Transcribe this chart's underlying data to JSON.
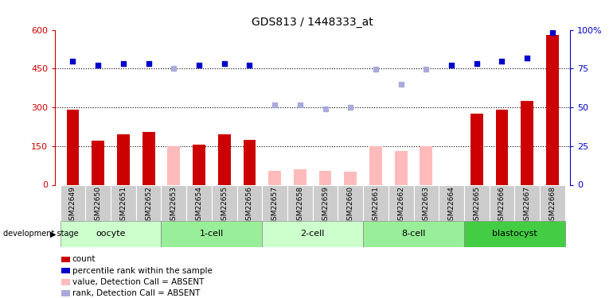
{
  "title": "GDS813 / 1448333_at",
  "samples": [
    "GSM22649",
    "GSM22650",
    "GSM22651",
    "GSM22652",
    "GSM22653",
    "GSM22654",
    "GSM22655",
    "GSM22656",
    "GSM22657",
    "GSM22658",
    "GSM22659",
    "GSM22660",
    "GSM22661",
    "GSM22662",
    "GSM22663",
    "GSM22664",
    "GSM22665",
    "GSM22666",
    "GSM22667",
    "GSM22668"
  ],
  "count_values": [
    290,
    170,
    195,
    205,
    null,
    155,
    195,
    175,
    null,
    null,
    null,
    null,
    null,
    null,
    null,
    null,
    275,
    290,
    325,
    580
  ],
  "absent_value_bars": [
    null,
    null,
    null,
    null,
    148,
    null,
    null,
    null,
    55,
    60,
    55,
    50,
    148,
    130,
    148,
    null,
    null,
    null,
    null,
    null
  ],
  "rank_present": [
    480,
    462,
    468,
    468,
    null,
    462,
    468,
    462,
    null,
    null,
    null,
    null,
    null,
    null,
    null,
    462,
    468,
    480,
    490,
    590
  ],
  "rank_absent": [
    null,
    null,
    null,
    null,
    450,
    null,
    null,
    null,
    310,
    310,
    295,
    300,
    448,
    390,
    448,
    null,
    null,
    null,
    null,
    null
  ],
  "stages": [
    {
      "name": "oocyte",
      "start": 0,
      "end": 4,
      "color": "#ccffcc"
    },
    {
      "name": "1-cell",
      "start": 4,
      "end": 8,
      "color": "#99ee99"
    },
    {
      "name": "2-cell",
      "start": 8,
      "end": 12,
      "color": "#ccffcc"
    },
    {
      "name": "8-cell",
      "start": 12,
      "end": 16,
      "color": "#99ee99"
    },
    {
      "name": "blastocyst",
      "start": 16,
      "end": 20,
      "color": "#44cc44"
    }
  ],
  "ylim_left": [
    0,
    600
  ],
  "ylim_right": [
    0,
    100
  ],
  "yticks_left": [
    0,
    150,
    300,
    450,
    600
  ],
  "yticks_right": [
    0,
    25,
    50,
    75,
    100
  ],
  "bar_width": 0.5,
  "red_color": "#cc0000",
  "pink_color": "#ffbbbb",
  "blue_color": "#0000cc",
  "lightblue_color": "#aaaadd",
  "bg_color": "#ffffff",
  "label_bg": "#cccccc",
  "legend_items": [
    {
      "color": "#cc0000",
      "label": "count"
    },
    {
      "color": "#0000cc",
      "label": "percentile rank within the sample"
    },
    {
      "color": "#ffbbbb",
      "label": "value, Detection Call = ABSENT"
    },
    {
      "color": "#aaaadd",
      "label": "rank, Detection Call = ABSENT"
    }
  ]
}
